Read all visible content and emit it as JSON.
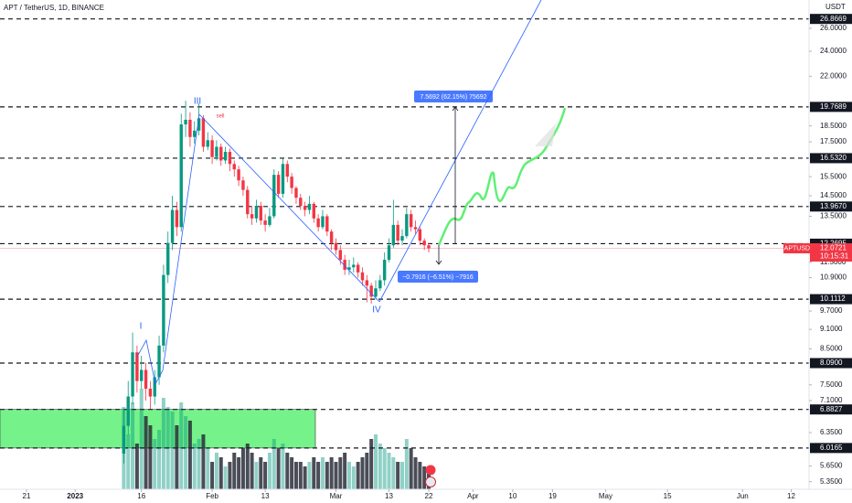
{
  "chart_data": {
    "type": "candlestick",
    "title": "APT / TetherUS, 1D, BINANCE",
    "currency": "USDT",
    "log_scale": true,
    "ylim": [
      5.21,
      28.7
    ],
    "yticks": [
      {
        "value": 26,
        "label": "26.0000"
      },
      {
        "value": 24,
        "label": "24.0000"
      },
      {
        "value": 22,
        "label": "22.0000"
      },
      {
        "value": 18.5,
        "label": "18.5000"
      },
      {
        "value": 17.5,
        "label": "17.5000"
      },
      {
        "value": 15.5,
        "label": "15.5000"
      },
      {
        "value": 14.5,
        "label": "14.5000"
      },
      {
        "value": 13.5,
        "label": "13.5000"
      },
      {
        "value": 11.5,
        "label": "11.5000"
      },
      {
        "value": 10.9,
        "label": "10.9000"
      },
      {
        "value": 9.7,
        "label": "9.7000"
      },
      {
        "value": 9.1,
        "label": "9.1000"
      },
      {
        "value": 8.5,
        "label": "8.5000"
      },
      {
        "value": 7.5,
        "label": "7.5000"
      },
      {
        "value": 7.1,
        "label": "7.1000"
      },
      {
        "value": 6.35,
        "label": "6.3500"
      },
      {
        "value": 5.65,
        "label": "5.6500"
      },
      {
        "value": 5.35,
        "label": "5.3500"
      }
    ],
    "xlim": [
      "2022-12-15",
      "2023-06-15"
    ],
    "xticks": [
      {
        "value": "2022-12-21",
        "label": "21"
      },
      {
        "value": "2023-01-01",
        "label": "2023"
      },
      {
        "value": "2023-01-16",
        "label": "16"
      },
      {
        "value": "2023-02-01",
        "label": "Feb"
      },
      {
        "value": "2023-02-13",
        "label": "13"
      },
      {
        "value": "2023-03-01",
        "label": "Mar"
      },
      {
        "value": "2023-03-13",
        "label": "13"
      },
      {
        "value": "2023-03-22",
        "label": "22"
      },
      {
        "value": "2023-04-01",
        "label": "Apr"
      },
      {
        "value": "2023-04-10",
        "label": "10"
      },
      {
        "value": "2023-04-19",
        "label": "19"
      },
      {
        "value": "2023-05-01",
        "label": "May"
      },
      {
        "value": "2023-05-15",
        "label": "15"
      },
      {
        "value": "2023-06-01",
        "label": "Jun"
      },
      {
        "value": "2023-06-12",
        "label": "12"
      }
    ],
    "levels": [
      26.8669,
      19.7689,
      {
        "value": 16.532,
        "label": "16.5320"
      },
      {
        "value": 13.967,
        "label": "13.9670"
      },
      12.2695,
      10.1112,
      {
        "value": 8.09,
        "label": "8.0900"
      },
      6.8827,
      6.0165
    ],
    "up_color": "#089981",
    "down_color": "#f23645",
    "zone_color": "#5ef075",
    "x": [
      "2023-01-12",
      "2023-01-13",
      "2023-01-14",
      "2023-01-15",
      "2023-01-16",
      "2023-01-17",
      "2023-01-18",
      "2023-01-19",
      "2023-01-20",
      "2023-01-21",
      "2023-01-22",
      "2023-01-23",
      "2023-01-24",
      "2023-01-25",
      "2023-01-26",
      "2023-01-27",
      "2023-01-28",
      "2023-01-29",
      "2023-01-30",
      "2023-01-31",
      "2023-02-01",
      "2023-02-02",
      "2023-02-03",
      "2023-02-04",
      "2023-02-05",
      "2023-02-06",
      "2023-02-07",
      "2023-02-08",
      "2023-02-09",
      "2023-02-10",
      "2023-02-11",
      "2023-02-12",
      "2023-02-13",
      "2023-02-14",
      "2023-02-15",
      "2023-02-16",
      "2023-02-17",
      "2023-02-18",
      "2023-02-19",
      "2023-02-20",
      "2023-02-21",
      "2023-02-22",
      "2023-02-23",
      "2023-02-24",
      "2023-02-25",
      "2023-02-26",
      "2023-02-27",
      "2023-02-28",
      "2023-03-01",
      "2023-03-02",
      "2023-03-03",
      "2023-03-04",
      "2023-03-05",
      "2023-03-06",
      "2023-03-07",
      "2023-03-08",
      "2023-03-09",
      "2023-03-10",
      "2023-03-11",
      "2023-03-12",
      "2023-03-13",
      "2023-03-14",
      "2023-03-15",
      "2023-03-16",
      "2023-03-17",
      "2023-03-18",
      "2023-03-19",
      "2023-03-20",
      "2023-03-21",
      "2023-03-22"
    ],
    "open": [
      5.9,
      6.5,
      7.2,
      8.4,
      7.6,
      7.9,
      7.4,
      7.2,
      7.7,
      8.6,
      11.0,
      12.3,
      13.8,
      13.0,
      18.6,
      18.9,
      17.8,
      18.2,
      19.0,
      17.2,
      17.6,
      16.6,
      17.2,
      16.4,
      16.9,
      16.2,
      15.9,
      15.3,
      14.8,
      13.6,
      13.4,
      14.0,
      13.3,
      13.1,
      13.5,
      15.6,
      14.6,
      16.2,
      15.5,
      14.9,
      14.4,
      14.0,
      13.8,
      14.1,
      13.4,
      13.0,
      13.5,
      12.8,
      12.3,
      12.0,
      11.6,
      11.2,
      11.3,
      11.4,
      11.1,
      10.8,
      10.6,
      10.2,
      10.5,
      10.8,
      11.6,
      12.2,
      13.1,
      12.4,
      12.6,
      13.6,
      13.0,
      12.9,
      12.4,
      12.2
    ],
    "high": [
      6.9,
      7.6,
      9.0,
      8.6,
      8.3,
      8.1,
      7.6,
      7.9,
      8.9,
      11.4,
      12.8,
      14.5,
      14.2,
      19.3,
      20.2,
      19.4,
      18.8,
      20.0,
      19.2,
      18.1,
      17.9,
      17.6,
      17.4,
      17.2,
      17.1,
      16.4,
      16.1,
      15.5,
      15.0,
      14.0,
      14.3,
      14.2,
      13.6,
      13.9,
      15.9,
      15.8,
      16.5,
      16.4,
      15.7,
      15.0,
      14.6,
      14.2,
      14.5,
      14.2,
      13.6,
      13.8,
      13.6,
      12.9,
      12.5,
      12.2,
      11.8,
      11.6,
      11.7,
      11.5,
      11.3,
      11.0,
      10.7,
      10.8,
      11.0,
      11.9,
      12.5,
      14.3,
      13.3,
      12.9,
      13.9,
      13.8,
      13.3,
      13.0,
      12.5,
      12.3
    ],
    "low": [
      5.7,
      6.3,
      7.0,
      7.3,
      7.4,
      7.1,
      6.9,
      7.0,
      7.5,
      8.4,
      10.7,
      12.0,
      12.6,
      12.8,
      17.8,
      17.2,
      17.4,
      17.9,
      16.9,
      17.0,
      16.2,
      16.4,
      16.1,
      16.2,
      15.8,
      15.5,
      15.0,
      14.5,
      13.4,
      13.1,
      13.2,
      13.1,
      12.8,
      13.0,
      13.4,
      14.4,
      14.4,
      15.2,
      14.6,
      14.1,
      13.8,
      13.5,
      13.6,
      13.2,
      12.8,
      12.9,
      12.6,
      12.0,
      11.8,
      11.4,
      11.0,
      11.0,
      11.1,
      10.9,
      10.6,
      10.0,
      9.95,
      10.1,
      10.4,
      10.6,
      11.5,
      12.1,
      12.2,
      12.2,
      12.5,
      12.8,
      12.7,
      12.2,
      12.0,
      11.9
    ],
    "close": [
      6.5,
      7.2,
      8.4,
      7.6,
      7.9,
      7.4,
      7.2,
      7.7,
      8.6,
      11.0,
      12.3,
      13.8,
      13.0,
      18.6,
      18.9,
      17.8,
      18.2,
      19.0,
      17.2,
      17.6,
      16.6,
      17.2,
      16.4,
      16.9,
      16.2,
      15.9,
      15.3,
      14.8,
      13.6,
      13.4,
      14.0,
      13.3,
      13.1,
      13.5,
      15.6,
      14.6,
      16.2,
      15.5,
      14.9,
      14.4,
      14.0,
      13.8,
      14.1,
      13.4,
      13.0,
      13.5,
      12.8,
      12.3,
      12.0,
      11.6,
      11.2,
      11.3,
      11.4,
      11.1,
      10.8,
      10.6,
      10.2,
      10.5,
      10.8,
      11.6,
      12.2,
      13.1,
      12.4,
      12.6,
      13.6,
      13.0,
      12.9,
      12.4,
      12.2,
      12.0721
    ],
    "volume": [
      90,
      60,
      95,
      50,
      110,
      80,
      70,
      55,
      65,
      100,
      90,
      85,
      70,
      95,
      80,
      75,
      50,
      55,
      60,
      45,
      30,
      40,
      35,
      25,
      30,
      40,
      35,
      45,
      50,
      40,
      30,
      35,
      30,
      40,
      55,
      45,
      50,
      40,
      35,
      30,
      30,
      25,
      30,
      35,
      30,
      35,
      30,
      35,
      30,
      35,
      40,
      30,
      25,
      30,
      35,
      40,
      55,
      60,
      50,
      45,
      40,
      35,
      30,
      30,
      55,
      45,
      35,
      30,
      25,
      20
    ],
    "price_label": {
      "symbol": "APTUSDT",
      "price": 12.0721,
      "countdown": "10:15:31"
    },
    "measure_up": "7.5692 (62.15%) 75692",
    "measure_down": "−0.7916 (−6.51%) −7916",
    "wave_labels": [
      "I",
      "III",
      "IV"
    ],
    "signal": "sell"
  }
}
